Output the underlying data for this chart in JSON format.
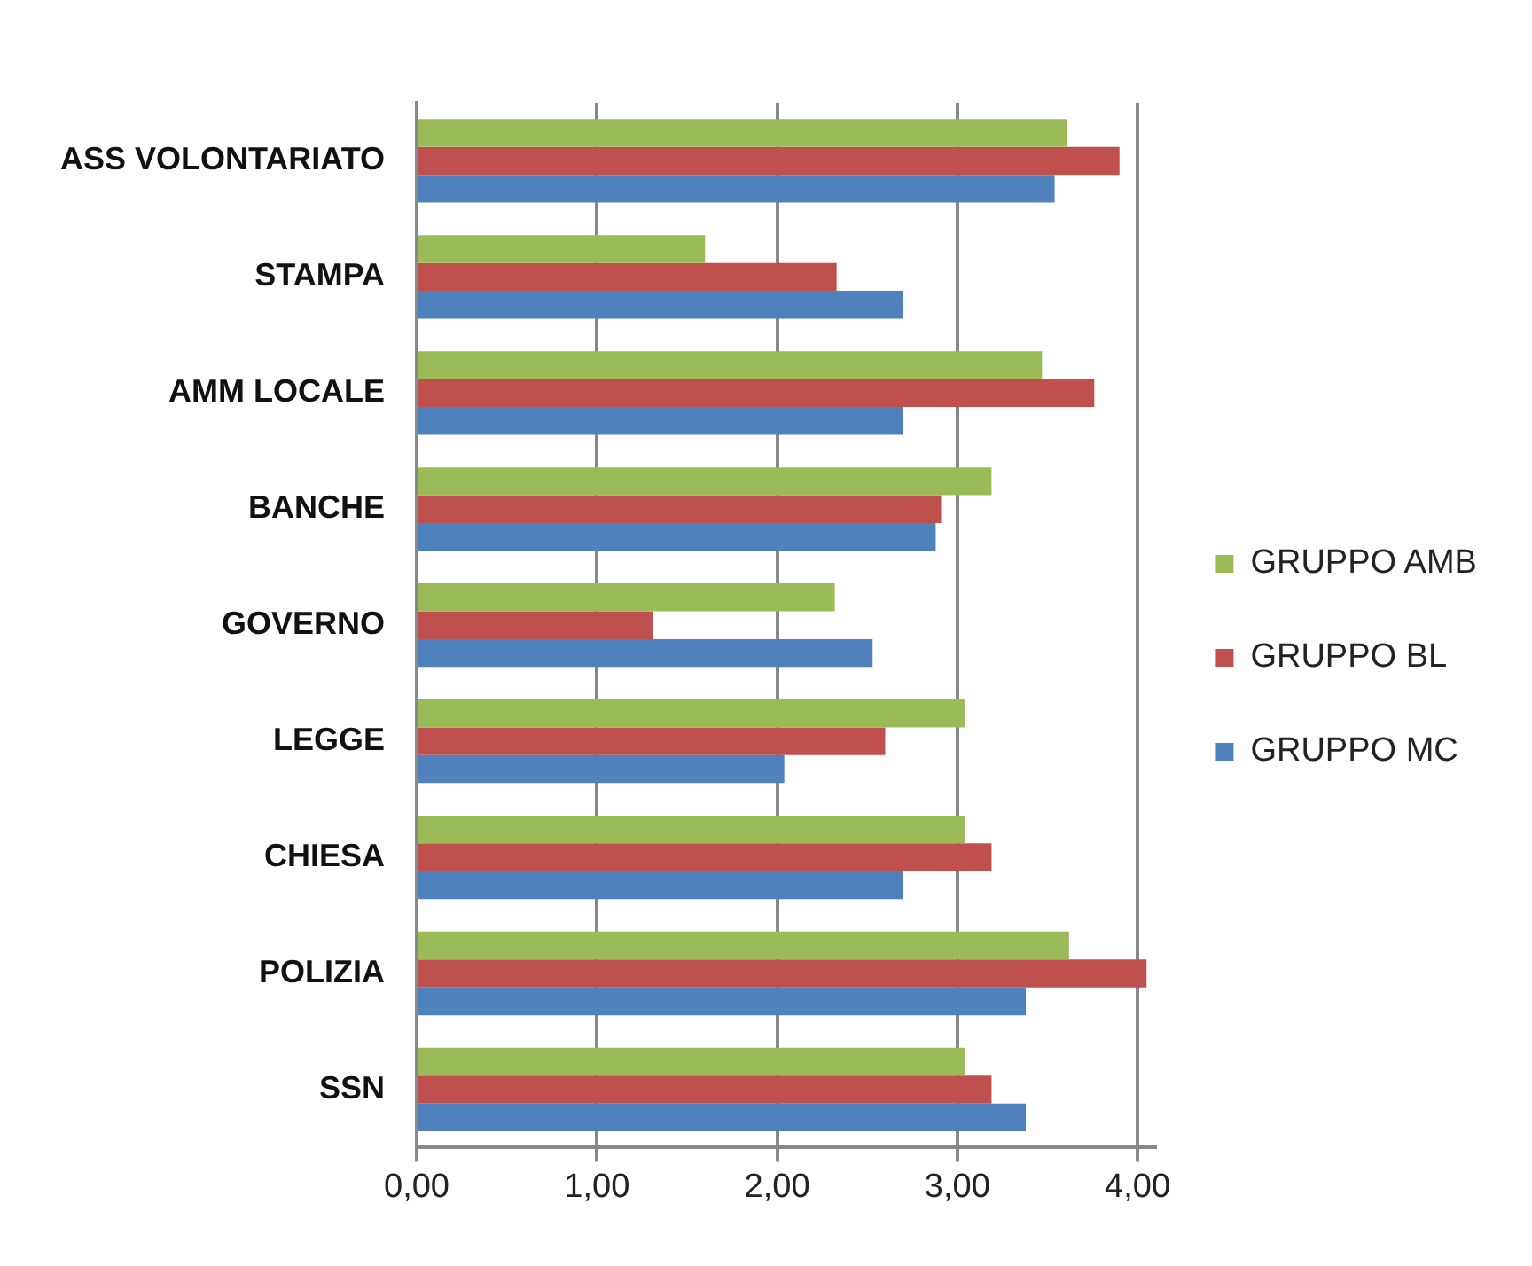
{
  "chart_data": {
    "type": "bar",
    "orientation": "horizontal",
    "categories": [
      "ASS VOLONTARIATO",
      "STAMPA",
      "AMM LOCALE",
      "BANCHE",
      "GOVERNO",
      "LEGGE",
      "CHIESA",
      "POLIZIA",
      "SSN"
    ],
    "series": [
      {
        "name": "GRUPPO AMB",
        "color": "#9bbb59",
        "values": [
          3.61,
          1.6,
          3.47,
          3.19,
          2.32,
          3.04,
          3.04,
          3.62,
          3.04
        ]
      },
      {
        "name": "GRUPPO BL",
        "color": "#c0504d",
        "values": [
          3.9,
          2.33,
          3.76,
          2.91,
          1.31,
          2.6,
          3.19,
          4.05,
          3.19
        ]
      },
      {
        "name": "GRUPPO MC",
        "color": "#4f81bd",
        "values": [
          3.54,
          2.7,
          2.7,
          2.88,
          2.53,
          2.04,
          2.7,
          3.38,
          3.38
        ]
      }
    ],
    "xlim": [
      0,
      4.1
    ],
    "xticks": [
      {
        "value": 0,
        "label": "0,00"
      },
      {
        "value": 1,
        "label": "1,00"
      },
      {
        "value": 2,
        "label": "2,00"
      },
      {
        "value": 3,
        "label": "3,00"
      },
      {
        "value": 4,
        "label": "4,00"
      }
    ],
    "grid": "x",
    "legend": "right"
  }
}
